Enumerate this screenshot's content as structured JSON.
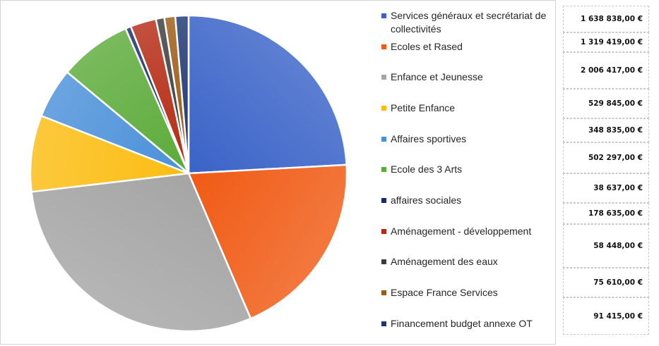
{
  "chart_data": {
    "type": "pie",
    "title": "",
    "categories": [
      "Services généraux et secrétariat de collectivités",
      "Ecoles et Rased",
      "Enfance et Jeunesse",
      "Petite Enfance",
      "Affaires sportives",
      "Ecole des 3 Arts",
      "affaires sociales",
      "Aménagement - développement",
      "Aménagement des eaux",
      "Espace France Services",
      "Financement budget annexe OT"
    ],
    "values": [
      1638838,
      1319419,
      2006417,
      529845,
      348835,
      502297,
      38637,
      178635,
      58448,
      75610,
      91415
    ],
    "value_labels": [
      "1 638 838,00 €",
      "1 319 419,00 €",
      "2 006 417,00 €",
      "529 845,00 €",
      "348 835,00 €",
      "502 297,00 €",
      "38 637,00 €",
      "178 635,00 €",
      "58 448,00 €",
      "75 610,00 €",
      "91 415,00 €"
    ],
    "colors": [
      "#3a63c8",
      "#f05a14",
      "#a5a5a5",
      "#fbbd12",
      "#4a90d9",
      "#5cab3a",
      "#1a2a6c",
      "#b52a12",
      "#3c3c3c",
      "#9c5a12",
      "#1d3672"
    ],
    "legend_position": "right"
  }
}
